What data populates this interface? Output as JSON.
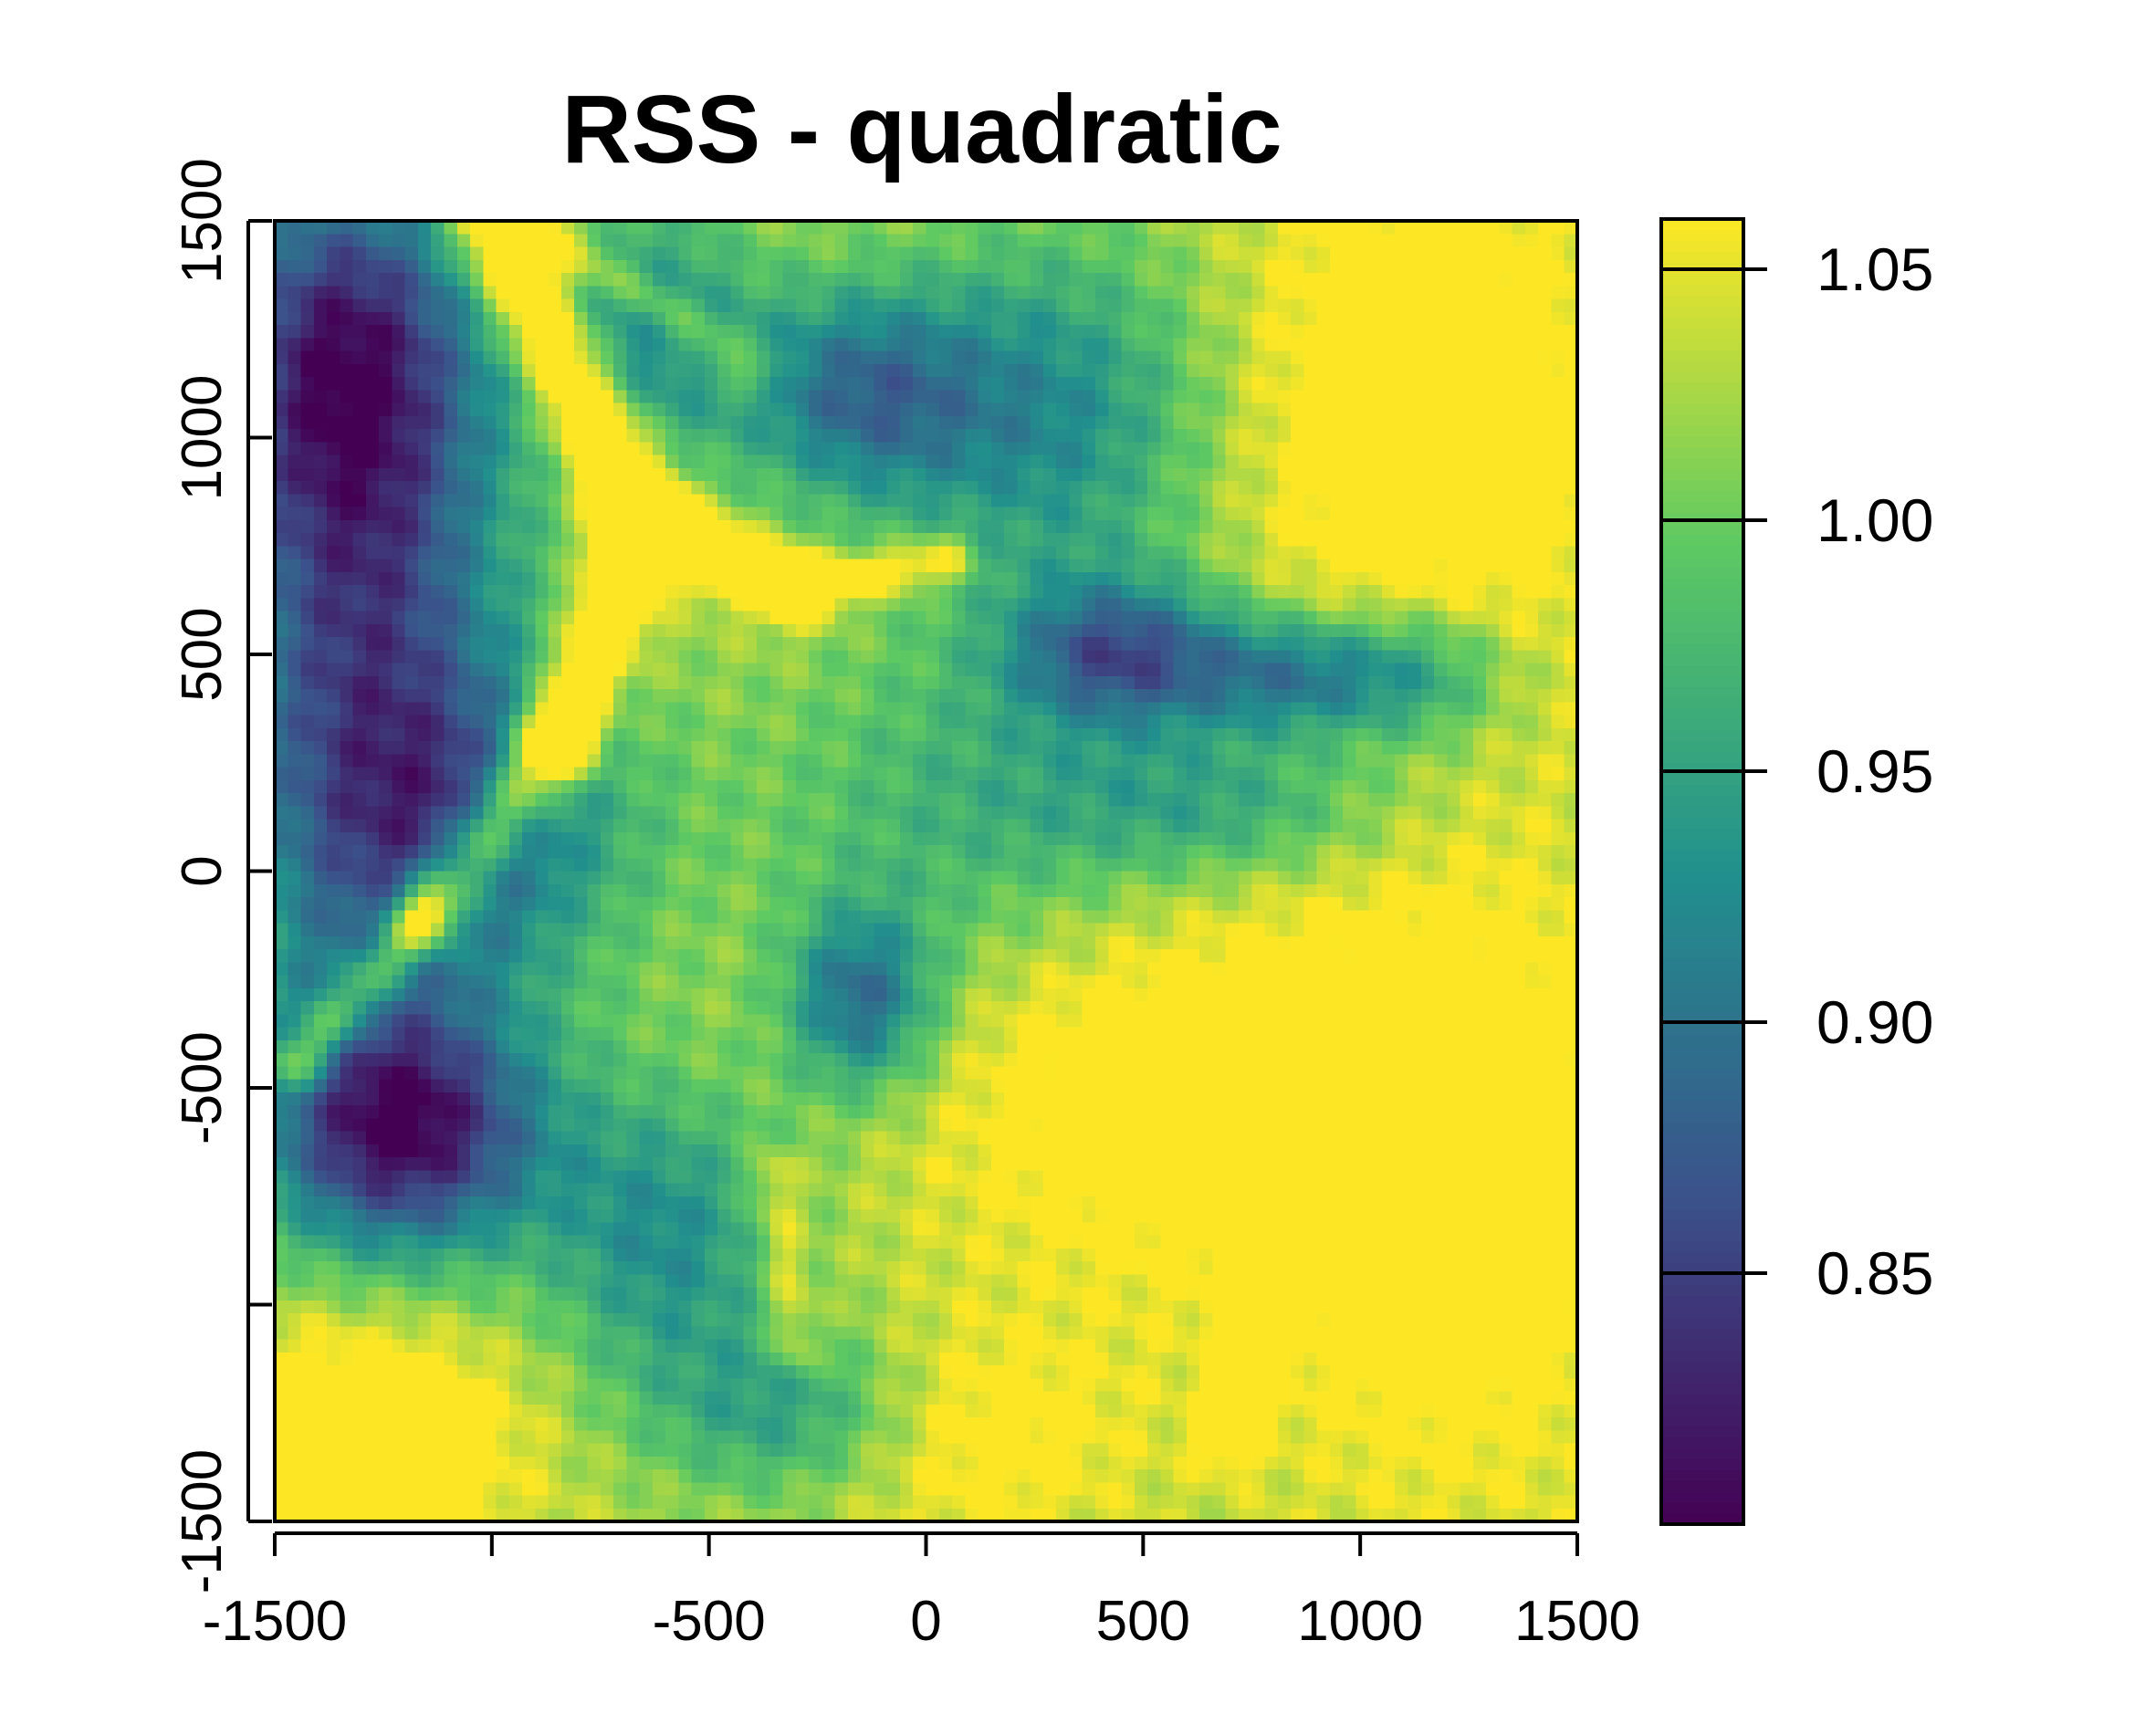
{
  "chart_data": {
    "type": "heatmap",
    "title": "RSS - quadratic",
    "xlabel": "",
    "ylabel": "",
    "xlim": [
      -1500,
      1500
    ],
    "ylim": [
      -1500,
      1500
    ],
    "x_ticks": [
      -1500,
      -1000,
      -500,
      0,
      500,
      1000,
      1500
    ],
    "x_tick_labels": [
      "-1500",
      "",
      "-500",
      "0",
      "500",
      "1000",
      "1500"
    ],
    "y_ticks": [
      -1500,
      -1000,
      -500,
      0,
      500,
      1000,
      1500
    ],
    "y_tick_labels": [
      "-1500",
      "",
      "-500",
      "0",
      "500",
      "1000",
      "1500"
    ],
    "colorbar": {
      "range": [
        0.8,
        1.06
      ],
      "ticks": [
        0.85,
        0.9,
        0.95,
        1.0,
        1.05
      ],
      "tick_labels": [
        "0.85",
        "0.90",
        "0.95",
        "1.00",
        "1.05"
      ],
      "palette": "viridis",
      "colors": [
        "#440154",
        "#3b528b",
        "#21908d",
        "#5dc963",
        "#fde725"
      ]
    },
    "features": [
      {
        "x": -1300,
        "y": 500,
        "sx": 250,
        "sy": 650,
        "v": -0.17
      },
      {
        "x": -1350,
        "y": 1200,
        "sx": 220,
        "sy": 300,
        "v": -0.14
      },
      {
        "x": -1200,
        "y": -600,
        "sx": 230,
        "sy": 200,
        "v": -0.2
      },
      {
        "x": -150,
        "y": 1100,
        "sx": 200,
        "sy": 180,
        "v": -0.13
      },
      {
        "x": -650,
        "y": 1250,
        "sx": 180,
        "sy": 220,
        "v": -0.1
      },
      {
        "x": 300,
        "y": 1050,
        "sx": 250,
        "sy": 300,
        "v": -0.1
      },
      {
        "x": 450,
        "y": 500,
        "sx": 180,
        "sy": 120,
        "v": -0.14
      },
      {
        "x": -150,
        "y": -300,
        "sx": 120,
        "sy": 150,
        "v": -0.13
      },
      {
        "x": 850,
        "y": 450,
        "sx": 180,
        "sy": 100,
        "v": -0.12
      },
      {
        "x": 1150,
        "y": 450,
        "sx": 150,
        "sy": 120,
        "v": -0.08
      },
      {
        "x": -600,
        "y": -850,
        "sx": 200,
        "sy": 250,
        "v": -0.1
      },
      {
        "x": -1000,
        "y": 100,
        "sx": 260,
        "sy": 250,
        "v": -0.1
      },
      {
        "x": -300,
        "y": -1250,
        "sx": 220,
        "sy": 140,
        "v": -0.08
      },
      {
        "x": 100,
        "y": 150,
        "sx": 350,
        "sy": 300,
        "v": -0.06
      },
      {
        "x": 700,
        "y": 150,
        "sx": 300,
        "sy": 120,
        "v": -0.07
      },
      {
        "x": 1150,
        "y": 1050,
        "sx": 300,
        "sy": 450,
        "v": 0.07
      },
      {
        "x": 1200,
        "y": -700,
        "sx": 320,
        "sy": 500,
        "v": 0.07
      },
      {
        "x": 500,
        "y": -500,
        "sx": 350,
        "sy": 300,
        "v": 0.06
      },
      {
        "x": -1300,
        "y": -1300,
        "sx": 250,
        "sy": 200,
        "v": 0.08
      },
      {
        "x": 100,
        "y": -1300,
        "sx": 250,
        "sy": 180,
        "v": 0.05
      }
    ],
    "ridges": [
      {
        "x1": -1000,
        "y1": 1500,
        "x2": -650,
        "y2": 800,
        "w": 70,
        "v": 0.15
      },
      {
        "x1": -650,
        "y1": 800,
        "x2": -300,
        "y2": 650,
        "w": 55,
        "v": 0.12
      },
      {
        "x1": -650,
        "y1": 800,
        "x2": -850,
        "y2": 300,
        "w": 60,
        "v": 0.13
      },
      {
        "x1": -850,
        "y1": 300,
        "x2": -1150,
        "y2": -100,
        "w": 60,
        "v": 0.12
      },
      {
        "x1": -1150,
        "y1": -100,
        "x2": -1450,
        "y2": -450,
        "w": 45,
        "v": 0.1
      },
      {
        "x1": -900,
        "y1": 1500,
        "x2": -400,
        "y2": 1150,
        "w": 40,
        "v": 0.06
      },
      {
        "x1": -300,
        "y1": 650,
        "x2": 50,
        "y2": 720,
        "w": 40,
        "v": 0.08
      },
      {
        "x1": 850,
        "y1": -600,
        "x2": 700,
        "y2": -1300,
        "w": 50,
        "v": 0.07
      },
      {
        "x1": -350,
        "y1": -700,
        "x2": -300,
        "y2": -1100,
        "w": 40,
        "v": 0.05
      }
    ]
  }
}
